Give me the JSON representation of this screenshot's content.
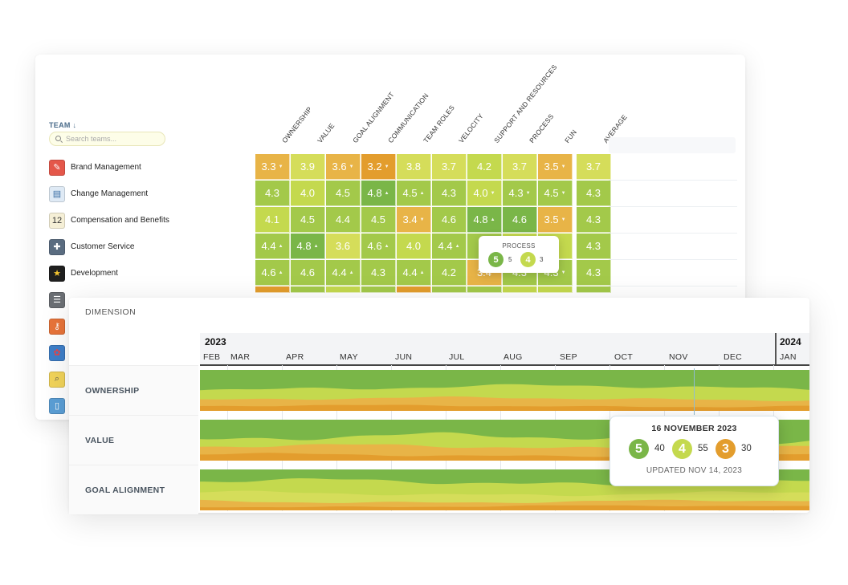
{
  "colors": {
    "green_dark": "#7ab648",
    "green": "#a3c94a",
    "lime": "#c4d94e",
    "yellow_green": "#d5dd5a",
    "orange_light": "#e8b447",
    "orange": "#e39d2d",
    "tooltip_border": "#8fbcd3"
  },
  "heatmap": {
    "team_header": "TEAM",
    "team_sort_icon": "arrow-down-icon",
    "search_placeholder": "Search teams...",
    "columns": [
      "OWNERSHIP",
      "VALUE",
      "GOAL ALIGNMENT",
      "COMMUNICATION",
      "TEAM ROLES",
      "VELOCITY",
      "SUPPORT AND RESOURCES",
      "PROCESS",
      "FUN",
      "AVERAGE"
    ],
    "teams": [
      {
        "name": "Brand Management",
        "icon": "megaphone-icon",
        "scores": [
          "3.3",
          "3.9",
          "3.6",
          "3.2",
          "3.8",
          "3.7",
          "4.2",
          "3.7",
          "3.5",
          "3.7"
        ],
        "trend": [
          "down",
          "",
          "down",
          "down",
          "",
          "",
          "",
          "",
          "down",
          ""
        ],
        "tone": [
          "orange_light",
          "yellow_green",
          "orange_light",
          "orange",
          "yellow_green",
          "yellow_green",
          "lime",
          "yellow_green",
          "orange_light",
          "yellow_green"
        ]
      },
      {
        "name": "Change Management",
        "icon": "id-card-icon",
        "scores": [
          "4.3",
          "4.0",
          "4.5",
          "4.8",
          "4.5",
          "4.3",
          "4.0",
          "4.3",
          "4.5",
          "4.3"
        ],
        "trend": [
          "",
          "",
          "",
          "up",
          "up",
          "",
          "down",
          "down",
          "down",
          ""
        ],
        "tone": [
          "green",
          "lime",
          "green",
          "green_dark",
          "green",
          "green",
          "lime",
          "green",
          "green",
          "green"
        ]
      },
      {
        "name": "Compensation and Benefits",
        "icon": "calendar-icon",
        "scores": [
          "4.1",
          "4.5",
          "4.4",
          "4.5",
          "3.4",
          "4.6",
          "4.8",
          "4.6",
          "3.5",
          "4.3"
        ],
        "trend": [
          "",
          "",
          "",
          "",
          "down",
          "",
          "up",
          "",
          "down",
          ""
        ],
        "tone": [
          "lime",
          "green",
          "green",
          "green",
          "orange_light",
          "green",
          "green_dark",
          "green_dark",
          "orange_light",
          "green"
        ]
      },
      {
        "name": "Customer Service",
        "icon": "puzzle-icon",
        "scores": [
          "4.4",
          "4.8",
          "3.6",
          "4.6",
          "4.0",
          "4.4",
          "",
          "",
          "",
          "4.3"
        ],
        "trend": [
          "up",
          "up",
          "",
          "up",
          "",
          "up",
          "",
          "",
          "",
          ""
        ],
        "tone": [
          "green",
          "green_dark",
          "yellow_green",
          "green",
          "lime",
          "green",
          "green",
          "lime",
          "lime",
          "green"
        ]
      },
      {
        "name": "Development",
        "icon": "star-icon",
        "scores": [
          "4.6",
          "4.6",
          "4.4",
          "4.3",
          "4.4",
          "4.2",
          "3.4",
          "4.3",
          "4.3",
          "4.3"
        ],
        "trend": [
          "up",
          "",
          "up",
          "",
          "up",
          "",
          "",
          "",
          "down",
          ""
        ],
        "tone": [
          "green",
          "green",
          "green",
          "green",
          "green",
          "green",
          "orange_light",
          "green",
          "green",
          "green"
        ]
      },
      {
        "name": "",
        "icon": "list-icon",
        "scores": [
          "",
          "",
          "",
          "",
          "",
          "",
          "",
          "",
          "",
          ""
        ],
        "trend": [
          "",
          "",
          "",
          "",
          "",
          "",
          "",
          "",
          "",
          ""
        ],
        "tone": [
          "orange",
          "green",
          "lime",
          "green",
          "orange",
          "green",
          "green",
          "lime",
          "lime",
          "green"
        ]
      },
      {
        "name": "",
        "icon": "key-icon"
      },
      {
        "name": "",
        "icon": "flower-icon"
      },
      {
        "name": "",
        "icon": "magnifier-icon"
      },
      {
        "name": "",
        "icon": "trash-icon"
      }
    ],
    "tooltip": {
      "title": "PROCESS",
      "items": [
        {
          "score": "5",
          "count": "5"
        },
        {
          "score": "4",
          "count": "3"
        }
      ]
    }
  },
  "timeline": {
    "dimension_label": "DIMENSION",
    "years": [
      "2023",
      "2024"
    ],
    "months": [
      "FEB",
      "MAR",
      "APR",
      "MAY",
      "JUN",
      "JUL",
      "AUG",
      "SEP",
      "OCT",
      "NOV",
      "DEC",
      "JAN"
    ],
    "rows": [
      "OWNERSHIP",
      "VALUE",
      "GOAL ALIGNMENT"
    ],
    "tooltip": {
      "date": "16 NOVEMBER 2023",
      "items": [
        {
          "score": "5",
          "count": "40"
        },
        {
          "score": "4",
          "count": "55"
        },
        {
          "score": "3",
          "count": "30"
        }
      ],
      "updated": "UPDATED NOV 14, 2023"
    }
  }
}
